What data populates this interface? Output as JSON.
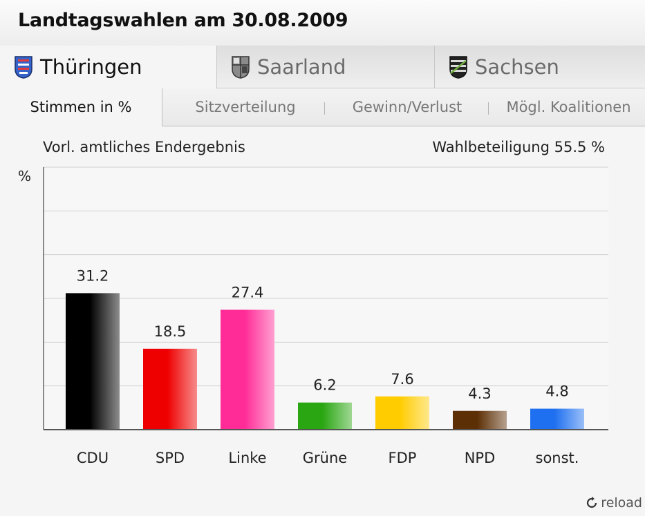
{
  "header": {
    "title": "Landtagswahlen am 30.08.2009"
  },
  "state_tabs": [
    {
      "label": "Thüringen",
      "active": true
    },
    {
      "label": "Saarland",
      "active": false
    },
    {
      "label": "Sachsen",
      "active": false
    }
  ],
  "sub_tabs": [
    {
      "label": "Stimmen in %",
      "active": true
    },
    {
      "label": "Sitzverteilung",
      "active": false
    },
    {
      "label": "Gewinn/Verlust",
      "active": false
    },
    {
      "label": "Mögl. Koalitionen",
      "active": false
    }
  ],
  "info": {
    "status": "Vorl. amtliches Endergebnis",
    "turnout": "Wahlbeteiligung 55.5 %"
  },
  "footer": {
    "reload_label": "reload"
  },
  "chart_data": {
    "type": "bar",
    "ylabel": "%",
    "ylim": [
      0,
      60
    ],
    "grid": true,
    "categories": [
      "CDU",
      "SPD",
      "Linke",
      "Grüne",
      "FDP",
      "NPD",
      "sonst."
    ],
    "values": [
      31.2,
      18.5,
      27.4,
      6.2,
      7.6,
      4.3,
      4.8
    ],
    "colors": [
      "#000000",
      "#ee0000",
      "#ff2c98",
      "#29a611",
      "#ffcc00",
      "#5c2f05",
      "#1f70f0"
    ],
    "value_labels": [
      "31.2",
      "18.5",
      "27.4",
      "6.2",
      "7.6",
      "4.3",
      "4.8"
    ]
  }
}
